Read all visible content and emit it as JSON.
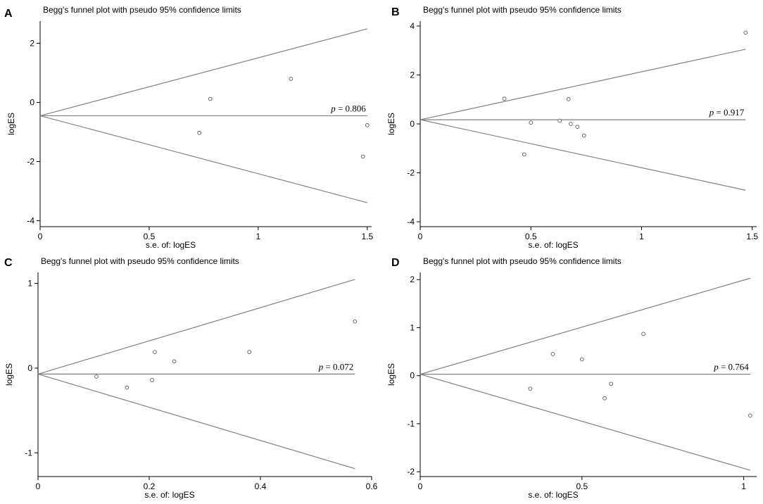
{
  "chart_data": [
    {
      "type": "scatter",
      "panel_label": "A",
      "title": "Begg's funnel plot with pseudo 95% confidence limits",
      "xlabel": "s.e. of: logES",
      "ylabel": "logES",
      "xlim": [
        0,
        1.52
      ],
      "ylim": [
        -4.2,
        2.75
      ],
      "xticks": [
        0,
        0.5,
        1,
        1.5
      ],
      "xtick_labels": [
        "0",
        "0.5",
        "1",
        "1.5"
      ],
      "yticks": [
        -4,
        -2,
        0,
        2
      ],
      "ytick_labels": [
        "-4",
        "-2",
        "0",
        "2"
      ],
      "pooled_effect": -0.45,
      "funnel_x_max": 1.5,
      "p_label": "p",
      "p_value": "= 0.806",
      "points": [
        [
          0.78,
          0.12
        ],
        [
          0.73,
          -1.03
        ],
        [
          1.15,
          0.8
        ],
        [
          1.48,
          -1.83
        ],
        [
          1.5,
          -0.77
        ]
      ]
    },
    {
      "type": "scatter",
      "panel_label": "B",
      "title": "Begg's funnel plot with pseudo 95% confidence limits",
      "xlabel": "s.e. of: logES",
      "ylabel": "logES",
      "xlim": [
        0,
        1.52
      ],
      "ylim": [
        -4.2,
        4.2
      ],
      "xticks": [
        0,
        0.5,
        1,
        1.5
      ],
      "xtick_labels": [
        "0",
        "0.5",
        "1",
        "1.5"
      ],
      "yticks": [
        -4,
        -2,
        0,
        2,
        4
      ],
      "ytick_labels": [
        "-4",
        "-2",
        "0",
        "2",
        "4"
      ],
      "pooled_effect": 0.17,
      "funnel_x_max": 1.47,
      "p_label": "p",
      "p_value": "= 0.917",
      "points": [
        [
          0.38,
          1.03
        ],
        [
          0.5,
          0.05
        ],
        [
          0.47,
          -1.25
        ],
        [
          0.63,
          0.13
        ],
        [
          0.67,
          1.01
        ],
        [
          0.68,
          0.0
        ],
        [
          0.71,
          -0.12
        ],
        [
          0.74,
          -0.48
        ],
        [
          1.47,
          3.73
        ]
      ]
    },
    {
      "type": "scatter",
      "panel_label": "C",
      "title": "Begg's funnel plot with pseudo 95% confidence limits",
      "xlabel": "s.e. of: logES",
      "ylabel": "logES",
      "xlim": [
        0,
        0.6
      ],
      "ylim": [
        -1.28,
        1.13
      ],
      "xticks": [
        0,
        0.2,
        0.4,
        0.6
      ],
      "xtick_labels": [
        "0",
        "0.2",
        "0.4",
        "0.6"
      ],
      "yticks": [
        -1,
        0,
        1
      ],
      "ytick_labels": [
        "-1",
        "0",
        "1"
      ],
      "pooled_effect": -0.07,
      "funnel_x_max": 0.57,
      "p_label": "p",
      "p_value": "= 0.072",
      "points": [
        [
          0.105,
          -0.1
        ],
        [
          0.16,
          -0.23
        ],
        [
          0.205,
          -0.14
        ],
        [
          0.21,
          0.19
        ],
        [
          0.245,
          0.08
        ],
        [
          0.38,
          0.19
        ],
        [
          0.57,
          0.55
        ]
      ]
    },
    {
      "type": "scatter",
      "panel_label": "D",
      "title": "Begg's funnel plot with pseudo 95% confidence limits",
      "xlabel": "s.e. of: logES",
      "ylabel": "logES",
      "xlim": [
        0,
        1.04
      ],
      "ylim": [
        -2.1,
        2.15
      ],
      "xticks": [
        0,
        0.5,
        1
      ],
      "xtick_labels": [
        "0",
        "0.5",
        "1"
      ],
      "yticks": [
        -2,
        -1,
        0,
        1,
        2
      ],
      "ytick_labels": [
        "-2",
        "-1",
        "0",
        "1",
        "2"
      ],
      "pooled_effect": 0.03,
      "funnel_x_max": 1.02,
      "p_label": "p",
      "p_value": "= 0.764",
      "points": [
        [
          0.34,
          -0.27
        ],
        [
          0.41,
          0.45
        ],
        [
          0.5,
          0.34
        ],
        [
          0.57,
          -0.47
        ],
        [
          0.59,
          -0.17
        ],
        [
          0.69,
          0.87
        ],
        [
          1.02,
          -0.83
        ]
      ]
    }
  ]
}
